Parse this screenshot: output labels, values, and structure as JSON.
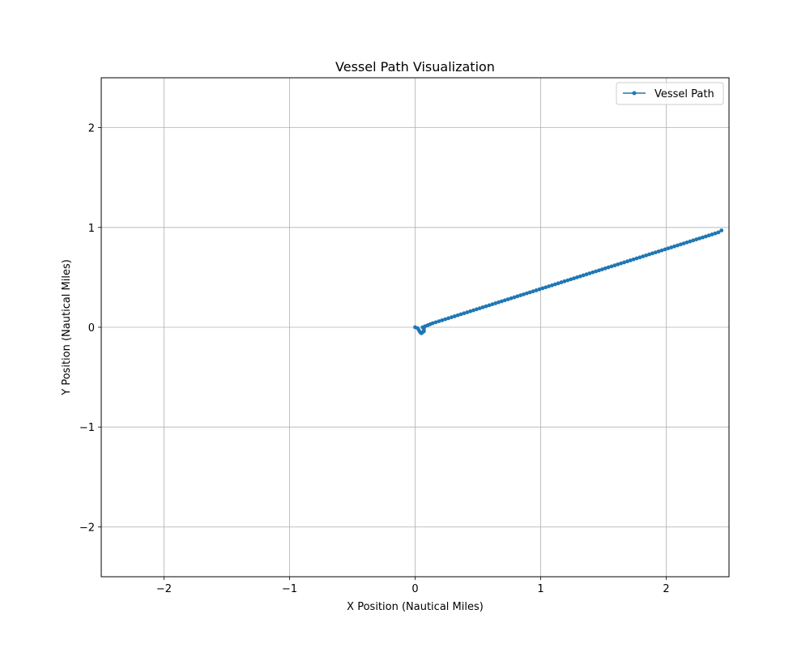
{
  "chart_data": {
    "type": "line",
    "title": "Vessel Path Visualization",
    "xlabel": "X Position (Nautical Miles)",
    "ylabel": "Y Position (Nautical Miles)",
    "xlim": [
      -2.5,
      2.5
    ],
    "ylim": [
      -2.5,
      2.5
    ],
    "xticks": [
      -2,
      -1,
      0,
      1,
      2
    ],
    "yticks": [
      -2,
      -1,
      0,
      1,
      2
    ],
    "xtick_labels": [
      "−2",
      "−1",
      "0",
      "1",
      "2"
    ],
    "ytick_labels": [
      "−2",
      "−1",
      "0",
      "1",
      "2"
    ],
    "grid": true,
    "legend": {
      "position": "top-right",
      "entries": [
        "Vessel Path"
      ]
    },
    "series": [
      {
        "name": "Vessel Path",
        "color": "#1f77b4",
        "marker": "circle",
        "points": [
          [
            0.0,
            0.0
          ],
          [
            0.02,
            -0.01
          ],
          [
            0.03,
            -0.03
          ],
          [
            0.04,
            -0.05
          ],
          [
            0.05,
            -0.06
          ],
          [
            0.06,
            -0.05
          ],
          [
            0.07,
            -0.04
          ],
          [
            0.07,
            -0.02
          ],
          [
            0.06,
            0.0
          ],
          [
            0.08,
            0.01
          ],
          [
            0.1,
            0.02
          ],
          [
            0.12,
            0.03
          ],
          [
            0.14,
            0.04
          ],
          [
            0.165,
            0.05
          ],
          [
            0.19,
            0.06
          ],
          [
            0.215,
            0.07
          ],
          [
            0.24,
            0.08
          ],
          [
            0.265,
            0.09
          ],
          [
            0.29,
            0.1
          ],
          [
            0.315,
            0.11
          ],
          [
            0.34,
            0.12
          ],
          [
            0.365,
            0.13
          ],
          [
            0.39,
            0.14
          ],
          [
            0.415,
            0.15
          ],
          [
            0.44,
            0.16
          ],
          [
            0.465,
            0.17
          ],
          [
            0.49,
            0.18
          ],
          [
            0.515,
            0.19
          ],
          [
            0.54,
            0.2
          ],
          [
            0.565,
            0.21
          ],
          [
            0.59,
            0.22
          ],
          [
            0.615,
            0.23
          ],
          [
            0.64,
            0.24
          ],
          [
            0.665,
            0.25
          ],
          [
            0.69,
            0.26
          ],
          [
            0.715,
            0.27
          ],
          [
            0.74,
            0.28
          ],
          [
            0.765,
            0.29
          ],
          [
            0.79,
            0.3
          ],
          [
            0.815,
            0.31
          ],
          [
            0.84,
            0.32
          ],
          [
            0.865,
            0.33
          ],
          [
            0.89,
            0.34
          ],
          [
            0.915,
            0.35
          ],
          [
            0.94,
            0.36
          ],
          [
            0.965,
            0.37
          ],
          [
            0.99,
            0.38
          ],
          [
            1.015,
            0.39
          ],
          [
            1.04,
            0.4
          ],
          [
            1.065,
            0.41
          ],
          [
            1.09,
            0.42
          ],
          [
            1.115,
            0.43
          ],
          [
            1.14,
            0.44
          ],
          [
            1.165,
            0.45
          ],
          [
            1.19,
            0.46
          ],
          [
            1.215,
            0.47
          ],
          [
            1.24,
            0.48
          ],
          [
            1.265,
            0.49
          ],
          [
            1.29,
            0.5
          ],
          [
            1.315,
            0.51
          ],
          [
            1.34,
            0.52
          ],
          [
            1.365,
            0.53
          ],
          [
            1.39,
            0.54
          ],
          [
            1.415,
            0.55
          ],
          [
            1.44,
            0.56
          ],
          [
            1.465,
            0.57
          ],
          [
            1.49,
            0.58
          ],
          [
            1.515,
            0.59
          ],
          [
            1.54,
            0.6
          ],
          [
            1.565,
            0.61
          ],
          [
            1.59,
            0.62
          ],
          [
            1.615,
            0.63
          ],
          [
            1.64,
            0.64
          ],
          [
            1.665,
            0.65
          ],
          [
            1.69,
            0.66
          ],
          [
            1.715,
            0.67
          ],
          [
            1.74,
            0.68
          ],
          [
            1.765,
            0.69
          ],
          [
            1.79,
            0.7
          ],
          [
            1.815,
            0.71
          ],
          [
            1.84,
            0.72
          ],
          [
            1.865,
            0.73
          ],
          [
            1.89,
            0.74
          ],
          [
            1.915,
            0.75
          ],
          [
            1.94,
            0.76
          ],
          [
            1.965,
            0.77
          ],
          [
            1.99,
            0.78
          ],
          [
            2.015,
            0.79
          ],
          [
            2.04,
            0.8
          ],
          [
            2.065,
            0.81
          ],
          [
            2.09,
            0.82
          ],
          [
            2.115,
            0.83
          ],
          [
            2.14,
            0.84
          ],
          [
            2.165,
            0.85
          ],
          [
            2.19,
            0.86
          ],
          [
            2.215,
            0.87
          ],
          [
            2.24,
            0.88
          ],
          [
            2.265,
            0.89
          ],
          [
            2.29,
            0.9
          ],
          [
            2.315,
            0.91
          ],
          [
            2.34,
            0.92
          ],
          [
            2.365,
            0.93
          ],
          [
            2.39,
            0.94
          ],
          [
            2.415,
            0.95
          ],
          [
            2.44,
            0.97
          ]
        ]
      }
    ]
  }
}
